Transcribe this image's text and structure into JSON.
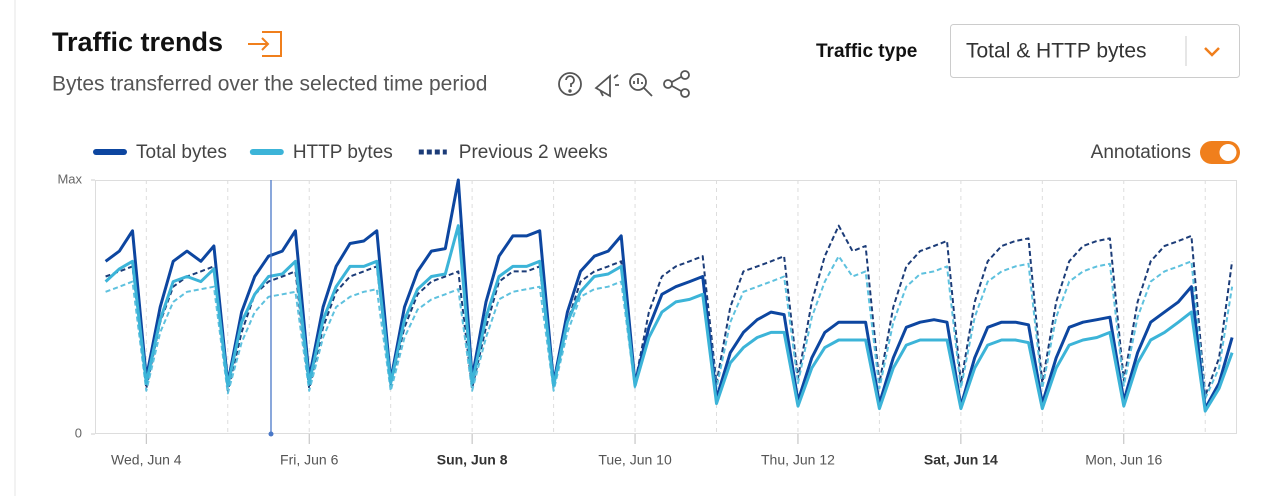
{
  "header": {
    "title": "Traffic trends",
    "subtitle": "Bytes transferred over the selected time period",
    "traffic_type_label": "Traffic type",
    "traffic_type_value": "Total & HTTP bytes",
    "annotations_label": "Annotations"
  },
  "chart_data": {
    "type": "line",
    "x": [
      3.5,
      3.67,
      3.83,
      4,
      4.17,
      4.33,
      4.5,
      4.67,
      4.83,
      5,
      5.17,
      5.33,
      5.5,
      5.67,
      5.83,
      6,
      6.17,
      6.33,
      6.5,
      6.67,
      6.83,
      7,
      7.17,
      7.33,
      7.5,
      7.67,
      7.83,
      8,
      8.17,
      8.33,
      8.5,
      8.67,
      8.83,
      9,
      9.17,
      9.33,
      9.5,
      9.67,
      9.83,
      10,
      10.17,
      10.33,
      10.5,
      10.67,
      10.83,
      11,
      11.17,
      11.33,
      11.5,
      11.67,
      11.83,
      12,
      12.17,
      12.33,
      12.5,
      12.67,
      12.83,
      13,
      13.17,
      13.33,
      13.5,
      13.67,
      13.83,
      14,
      14.17,
      14.33,
      14.5,
      14.67,
      14.83,
      15,
      15.17,
      15.33,
      15.5,
      15.67,
      15.83,
      16,
      16.17,
      16.33,
      16.5,
      16.67,
      16.83,
      17,
      17.17,
      17.33
    ],
    "series": [
      {
        "name": "Total bytes",
        "color": "#0d46a0",
        "dashed": false,
        "values": [
          68,
          72,
          80,
          22,
          50,
          68,
          72,
          68,
          74,
          20,
          48,
          62,
          70,
          72,
          80,
          22,
          50,
          66,
          75,
          76,
          80,
          21,
          50,
          64,
          72,
          73,
          100,
          22,
          52,
          70,
          78,
          78,
          80,
          20,
          48,
          64,
          70,
          72,
          78,
          20,
          42,
          55,
          58,
          60,
          62,
          14,
          32,
          40,
          45,
          48,
          47,
          13,
          30,
          40,
          44,
          44,
          44,
          12,
          30,
          42,
          44,
          45,
          44,
          11,
          30,
          42,
          44,
          44,
          43,
          12,
          30,
          42,
          44,
          45,
          46,
          13,
          32,
          44,
          48,
          52,
          58,
          10,
          20,
          38
        ]
      },
      {
        "name": "HTTP bytes",
        "color": "#3cb4d8",
        "dashed": false,
        "values": [
          60,
          65,
          68,
          20,
          45,
          60,
          62,
          60,
          65,
          19,
          44,
          55,
          62,
          63,
          68,
          20,
          45,
          58,
          66,
          66,
          68,
          20,
          45,
          57,
          62,
          63,
          82,
          20,
          46,
          62,
          66,
          66,
          68,
          19,
          44,
          56,
          62,
          63,
          66,
          19,
          38,
          48,
          52,
          53,
          55,
          12,
          28,
          34,
          38,
          40,
          40,
          11,
          26,
          34,
          37,
          37,
          37,
          10,
          26,
          35,
          37,
          37,
          37,
          10,
          26,
          35,
          37,
          37,
          36,
          10,
          26,
          35,
          37,
          38,
          40,
          11,
          28,
          37,
          40,
          44,
          48,
          9,
          18,
          32
        ]
      },
      {
        "name": "Previous 2 weeks",
        "color": "#1c3c78",
        "dashed": true,
        "values": [
          62,
          64,
          66,
          18,
          44,
          58,
          62,
          64,
          66,
          17,
          40,
          55,
          60,
          62,
          64,
          18,
          42,
          56,
          62,
          64,
          66,
          19,
          42,
          55,
          60,
          62,
          64,
          18,
          42,
          60,
          64,
          64,
          66,
          18,
          44,
          60,
          64,
          66,
          68,
          20,
          48,
          62,
          66,
          68,
          70,
          20,
          50,
          64,
          66,
          68,
          70,
          22,
          52,
          70,
          82,
          72,
          74,
          20,
          50,
          66,
          72,
          74,
          76,
          20,
          52,
          68,
          74,
          76,
          77,
          20,
          52,
          68,
          74,
          76,
          77,
          21,
          52,
          68,
          74,
          76,
          78,
          15,
          30,
          68
        ]
      },
      {
        "color": "#5ec1de",
        "dashed": true,
        "values": [
          56,
          58,
          60,
          17,
          40,
          52,
          56,
          57,
          58,
          16,
          36,
          48,
          54,
          55,
          56,
          17,
          38,
          50,
          54,
          56,
          57,
          17,
          38,
          49,
          53,
          55,
          57,
          17,
          38,
          53,
          56,
          57,
          58,
          17,
          40,
          54,
          57,
          58,
          60,
          18,
          42,
          55,
          58,
          60,
          62,
          18,
          44,
          56,
          58,
          60,
          62,
          20,
          46,
          60,
          70,
          62,
          64,
          18,
          44,
          58,
          63,
          64,
          66,
          18,
          46,
          60,
          64,
          66,
          67,
          18,
          46,
          60,
          64,
          66,
          67,
          19,
          46,
          60,
          64,
          66,
          68,
          14,
          26,
          58
        ]
      }
    ],
    "xlim": [
      3.37,
      17.39
    ],
    "xticks": [
      {
        "value": 4,
        "label": "Wed, Jun 4"
      },
      {
        "value": 6,
        "label": "Fri, Jun 6"
      },
      {
        "value": 8,
        "label": "Sun, Jun 8"
      },
      {
        "value": 10,
        "label": "Tue, Jun 10"
      },
      {
        "value": 12,
        "label": "Thu, Jun 12"
      },
      {
        "value": 14,
        "label": "Sat, Jun 14"
      },
      {
        "value": 16,
        "label": "Mon, Jun 16"
      }
    ],
    "xminor_ticks": [
      5,
      7,
      9,
      11,
      13,
      15,
      17
    ],
    "ylim": [
      0,
      100
    ],
    "yticks": [
      0,
      {
        "value": 100,
        "label": "Max"
      }
    ]
  }
}
